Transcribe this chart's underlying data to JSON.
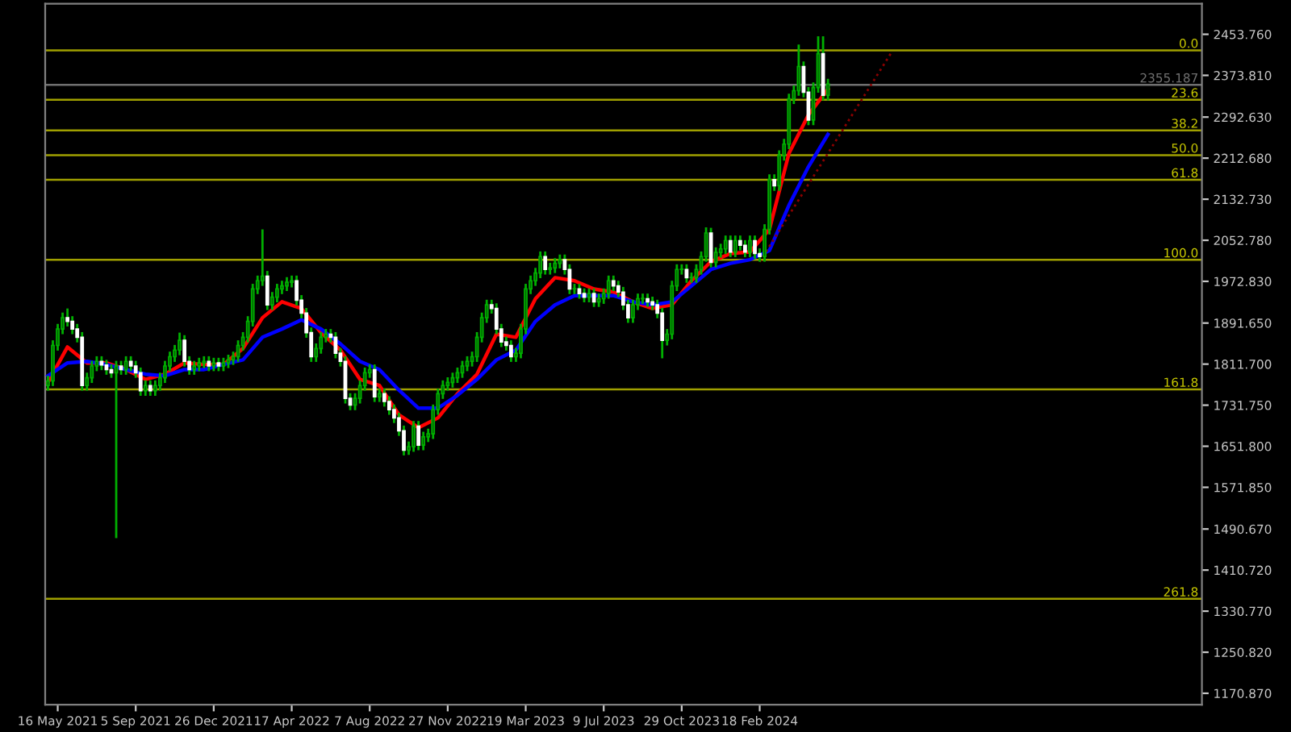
{
  "chart_data": {
    "type": "candlestick",
    "x": [
      "2021-05-02",
      "2021-05-09",
      "2021-05-16",
      "2021-05-23",
      "2021-05-30",
      "2021-06-06",
      "2021-06-13",
      "2021-06-20",
      "2021-06-27",
      "2021-07-04",
      "2021-07-11",
      "2021-07-18",
      "2021-07-25",
      "2021-08-01",
      "2021-08-08",
      "2021-08-15",
      "2021-08-22",
      "2021-08-29",
      "2021-09-05",
      "2021-09-12",
      "2021-09-19",
      "2021-09-26",
      "2021-10-03",
      "2021-10-10",
      "2021-10-17",
      "2021-10-24",
      "2021-10-31",
      "2021-11-07",
      "2021-11-14",
      "2021-11-21",
      "2021-11-28",
      "2021-12-05",
      "2021-12-12",
      "2021-12-19",
      "2021-12-26",
      "2022-01-02",
      "2022-01-09",
      "2022-01-16",
      "2022-01-23",
      "2022-01-30",
      "2022-02-06",
      "2022-02-13",
      "2022-02-20",
      "2022-02-27",
      "2022-03-06",
      "2022-03-13",
      "2022-03-20",
      "2022-03-27",
      "2022-04-03",
      "2022-04-10",
      "2022-04-17",
      "2022-04-24",
      "2022-05-01",
      "2022-05-08",
      "2022-05-15",
      "2022-05-22",
      "2022-05-29",
      "2022-06-05",
      "2022-06-12",
      "2022-06-19",
      "2022-06-26",
      "2022-07-03",
      "2022-07-10",
      "2022-07-17",
      "2022-07-24",
      "2022-07-31",
      "2022-08-07",
      "2022-08-14",
      "2022-08-21",
      "2022-08-28",
      "2022-09-04",
      "2022-09-11",
      "2022-09-18",
      "2022-09-25",
      "2022-10-02",
      "2022-10-09",
      "2022-10-16",
      "2022-10-23",
      "2022-10-30",
      "2022-11-06",
      "2022-11-13",
      "2022-11-20",
      "2022-11-27",
      "2022-12-04",
      "2022-12-11",
      "2022-12-18",
      "2022-12-25",
      "2023-01-01",
      "2023-01-08",
      "2023-01-15",
      "2023-01-22",
      "2023-01-29",
      "2023-02-05",
      "2023-02-12",
      "2023-02-19",
      "2023-02-26",
      "2023-03-05",
      "2023-03-12",
      "2023-03-19",
      "2023-03-26",
      "2023-04-02",
      "2023-04-09",
      "2023-04-16",
      "2023-04-23",
      "2023-04-30",
      "2023-05-07",
      "2023-05-14",
      "2023-05-21",
      "2023-05-28",
      "2023-06-04",
      "2023-06-11",
      "2023-06-18",
      "2023-06-25",
      "2023-07-02",
      "2023-07-09",
      "2023-07-16",
      "2023-07-23",
      "2023-07-30",
      "2023-08-06",
      "2023-08-13",
      "2023-08-20",
      "2023-08-27",
      "2023-09-03",
      "2023-09-10",
      "2023-09-17",
      "2023-09-24",
      "2023-10-01",
      "2023-10-08",
      "2023-10-15",
      "2023-10-22",
      "2023-10-29",
      "2023-11-05",
      "2023-11-12",
      "2023-11-19",
      "2023-11-26",
      "2023-12-03",
      "2023-12-10",
      "2023-12-17",
      "2023-12-24",
      "2023-12-31",
      "2024-01-07",
      "2024-01-14",
      "2024-01-21",
      "2024-01-28",
      "2024-02-04",
      "2024-02-11",
      "2024-02-18",
      "2024-02-25",
      "2024-03-03",
      "2024-03-10",
      "2024-03-17",
      "2024-03-24",
      "2024-03-31",
      "2024-04-07",
      "2024-04-14",
      "2024-04-21",
      "2024-04-28",
      "2024-05-05",
      "2024-05-12",
      "2024-05-19",
      "2024-05-26"
    ],
    "ohlc": [
      [
        1770,
        1789,
        1760,
        1779
      ],
      [
        1779,
        1858,
        1769,
        1848
      ],
      [
        1848,
        1890,
        1838,
        1880
      ],
      [
        1880,
        1912,
        1870,
        1902
      ],
      [
        1902,
        1920,
        1885,
        1895
      ],
      [
        1895,
        1905,
        1870,
        1880
      ],
      [
        1880,
        1890,
        1854,
        1864
      ],
      [
        1864,
        1874,
        1760,
        1770
      ],
      [
        1770,
        1795,
        1760,
        1785
      ],
      [
        1785,
        1818,
        1775,
        1808
      ],
      [
        1808,
        1827,
        1798,
        1817
      ],
      [
        1817,
        1827,
        1800,
        1810
      ],
      [
        1810,
        1820,
        1791,
        1801
      ],
      [
        1801,
        1811,
        1785,
        1795
      ],
      [
        1795,
        1818,
        1473,
        1808
      ],
      [
        1808,
        1818,
        1791,
        1801
      ],
      [
        1801,
        1827,
        1791,
        1817
      ],
      [
        1817,
        1827,
        1798,
        1808
      ],
      [
        1808,
        1818,
        1785,
        1795
      ],
      [
        1795,
        1805,
        1750,
        1760
      ],
      [
        1760,
        1780,
        1750,
        1770
      ],
      [
        1770,
        1780,
        1750,
        1760
      ],
      [
        1760,
        1780,
        1750,
        1770
      ],
      [
        1770,
        1795,
        1760,
        1785
      ],
      [
        1785,
        1818,
        1775,
        1808
      ],
      [
        1808,
        1836,
        1798,
        1826
      ],
      [
        1826,
        1849,
        1816,
        1839
      ],
      [
        1839,
        1873,
        1829,
        1858
      ],
      [
        1858,
        1868,
        1807,
        1817
      ],
      [
        1817,
        1827,
        1791,
        1801
      ],
      [
        1801,
        1818,
        1791,
        1808
      ],
      [
        1808,
        1824,
        1798,
        1814
      ],
      [
        1814,
        1827,
        1804,
        1817
      ],
      [
        1817,
        1827,
        1798,
        1808
      ],
      [
        1808,
        1824,
        1798,
        1814
      ],
      [
        1814,
        1824,
        1798,
        1808
      ],
      [
        1808,
        1824,
        1798,
        1814
      ],
      [
        1814,
        1830,
        1804,
        1820
      ],
      [
        1820,
        1836,
        1810,
        1826
      ],
      [
        1826,
        1858,
        1816,
        1848
      ],
      [
        1848,
        1874,
        1838,
        1864
      ],
      [
        1864,
        1905,
        1854,
        1895
      ],
      [
        1895,
        1968,
        1885,
        1958
      ],
      [
        1958,
        1984,
        1948,
        1974
      ],
      [
        1974,
        2074,
        1964,
        1983
      ],
      [
        1983,
        1993,
        1917,
        1927
      ],
      [
        1927,
        1952,
        1917,
        1942
      ],
      [
        1942,
        1968,
        1932,
        1958
      ],
      [
        1958,
        1974,
        1948,
        1964
      ],
      [
        1964,
        1981,
        1954,
        1971
      ],
      [
        1971,
        1984,
        1961,
        1974
      ],
      [
        1974,
        1984,
        1926,
        1936
      ],
      [
        1936,
        1946,
        1901,
        1911
      ],
      [
        1911,
        1921,
        1863,
        1873
      ],
      [
        1873,
        1883,
        1816,
        1826
      ],
      [
        1826,
        1852,
        1816,
        1842
      ],
      [
        1842,
        1874,
        1832,
        1864
      ],
      [
        1864,
        1880,
        1854,
        1870
      ],
      [
        1870,
        1880,
        1854,
        1864
      ],
      [
        1864,
        1874,
        1823,
        1833
      ],
      [
        1833,
        1843,
        1807,
        1817
      ],
      [
        1817,
        1827,
        1735,
        1745
      ],
      [
        1745,
        1755,
        1722,
        1732
      ],
      [
        1732,
        1755,
        1722,
        1745
      ],
      [
        1745,
        1780,
        1735,
        1770
      ],
      [
        1770,
        1805,
        1760,
        1795
      ],
      [
        1795,
        1811,
        1785,
        1801
      ],
      [
        1801,
        1811,
        1738,
        1748
      ],
      [
        1748,
        1764,
        1738,
        1754
      ],
      [
        1754,
        1764,
        1729,
        1739
      ],
      [
        1739,
        1749,
        1713,
        1723
      ],
      [
        1723,
        1733,
        1697,
        1707
      ],
      [
        1707,
        1717,
        1672,
        1682
      ],
      [
        1682,
        1692,
        1634,
        1644
      ],
      [
        1644,
        1661,
        1635,
        1651
      ],
      [
        1651,
        1701,
        1641,
        1691
      ],
      [
        1691,
        1701,
        1644,
        1654
      ],
      [
        1654,
        1680,
        1644,
        1670
      ],
      [
        1670,
        1686,
        1660,
        1676
      ],
      [
        1676,
        1733,
        1666,
        1723
      ],
      [
        1723,
        1764,
        1713,
        1754
      ],
      [
        1754,
        1780,
        1744,
        1770
      ],
      [
        1770,
        1786,
        1760,
        1776
      ],
      [
        1776,
        1795,
        1766,
        1785
      ],
      [
        1785,
        1805,
        1775,
        1795
      ],
      [
        1795,
        1818,
        1785,
        1808
      ],
      [
        1808,
        1827,
        1798,
        1817
      ],
      [
        1817,
        1836,
        1807,
        1826
      ],
      [
        1826,
        1874,
        1816,
        1864
      ],
      [
        1864,
        1912,
        1854,
        1902
      ],
      [
        1902,
        1937,
        1892,
        1927
      ],
      [
        1927,
        1937,
        1910,
        1920
      ],
      [
        1920,
        1930,
        1870,
        1880
      ],
      [
        1880,
        1890,
        1845,
        1855
      ],
      [
        1855,
        1865,
        1838,
        1848
      ],
      [
        1848,
        1858,
        1816,
        1826
      ],
      [
        1826,
        1843,
        1816,
        1833
      ],
      [
        1833,
        1890,
        1823,
        1880
      ],
      [
        1880,
        1968,
        1870,
        1958
      ],
      [
        1958,
        1984,
        1948,
        1974
      ],
      [
        1974,
        1999,
        1964,
        1989
      ],
      [
        1989,
        2031,
        1979,
        2021
      ],
      [
        2021,
        2031,
        1986,
        1996
      ],
      [
        1996,
        2009,
        1986,
        1999
      ],
      [
        1999,
        2018,
        1989,
        2008
      ],
      [
        2008,
        2025,
        1998,
        2015
      ],
      [
        2015,
        2025,
        1986,
        1996
      ],
      [
        1996,
        2006,
        1948,
        1958
      ],
      [
        1958,
        1968,
        1948,
        1958
      ],
      [
        1958,
        1968,
        1939,
        1949
      ],
      [
        1949,
        1959,
        1932,
        1942
      ],
      [
        1942,
        1959,
        1932,
        1949
      ],
      [
        1949,
        1959,
        1923,
        1933
      ],
      [
        1933,
        1949,
        1923,
        1939
      ],
      [
        1939,
        1959,
        1929,
        1949
      ],
      [
        1949,
        1984,
        1939,
        1974
      ],
      [
        1974,
        1984,
        1954,
        1964
      ],
      [
        1964,
        1974,
        1942,
        1952
      ],
      [
        1952,
        1962,
        1917,
        1927
      ],
      [
        1927,
        1937,
        1892,
        1902
      ],
      [
        1902,
        1937,
        1892,
        1927
      ],
      [
        1927,
        1949,
        1917,
        1939
      ],
      [
        1939,
        1949,
        1929,
        1939
      ],
      [
        1939,
        1949,
        1923,
        1933
      ],
      [
        1933,
        1943,
        1917,
        1927
      ],
      [
        1927,
        1937,
        1901,
        1911
      ],
      [
        1911,
        1921,
        1823,
        1858
      ],
      [
        1858,
        1880,
        1848,
        1870
      ],
      [
        1870,
        1974,
        1860,
        1964
      ],
      [
        1964,
        2006,
        1954,
        1996
      ],
      [
        1996,
        2006,
        1986,
        1996
      ],
      [
        1996,
        2006,
        1970,
        1980
      ],
      [
        1980,
        1990,
        1970,
        1980
      ],
      [
        1980,
        2006,
        1970,
        1996
      ],
      [
        1996,
        2031,
        1986,
        2021
      ],
      [
        2021,
        2078,
        2011,
        2067
      ],
      [
        2067,
        2077,
        2000,
        2010
      ],
      [
        2010,
        2039,
        2000,
        2029
      ],
      [
        2029,
        2046,
        2019,
        2036
      ],
      [
        2036,
        2062,
        2026,
        2052
      ],
      [
        2052,
        2062,
        2020,
        2030
      ],
      [
        2030,
        2062,
        2020,
        2052
      ],
      [
        2052,
        2062,
        2033,
        2043
      ],
      [
        2043,
        2053,
        2020,
        2030
      ],
      [
        2030,
        2062,
        2020,
        2052
      ],
      [
        2052,
        2062,
        2017,
        2027
      ],
      [
        2027,
        2037,
        2011,
        2021
      ],
      [
        2021,
        2084,
        2011,
        2074
      ],
      [
        2074,
        2181,
        2064,
        2171
      ],
      [
        2171,
        2181,
        2149,
        2159
      ],
      [
        2159,
        2228,
        2149,
        2218
      ],
      [
        2218,
        2250,
        2208,
        2240
      ],
      [
        2240,
        2338,
        2230,
        2328
      ],
      [
        2328,
        2354,
        2318,
        2344
      ],
      [
        2344,
        2434,
        2334,
        2391
      ],
      [
        2391,
        2401,
        2331,
        2341
      ],
      [
        2341,
        2351,
        2277,
        2287
      ],
      [
        2287,
        2360,
        2277,
        2350
      ],
      [
        2350,
        2450,
        2340,
        2416
      ],
      [
        2416,
        2450,
        2325,
        2335
      ],
      [
        2335,
        2367,
        2325,
        2357
      ]
    ],
    "series": [
      {
        "type": "line",
        "color": "#ff0000",
        "x": [
          "2021-05-02",
          "2021-05-30",
          "2021-06-27",
          "2021-07-25",
          "2021-08-22",
          "2021-09-19",
          "2021-10-17",
          "2021-11-14",
          "2021-12-12",
          "2022-01-09",
          "2022-02-06",
          "2022-03-06",
          "2022-04-03",
          "2022-05-01",
          "2022-05-29",
          "2022-06-26",
          "2022-07-24",
          "2022-08-21",
          "2022-09-18",
          "2022-10-16",
          "2022-11-13",
          "2022-12-11",
          "2023-01-08",
          "2023-02-05",
          "2023-03-05",
          "2023-04-02",
          "2023-04-30",
          "2023-05-28",
          "2023-06-25",
          "2023-07-23",
          "2023-08-20",
          "2023-09-17",
          "2023-10-15",
          "2023-11-12",
          "2023-12-10",
          "2024-01-07",
          "2024-02-04",
          "2024-03-03",
          "2024-03-31",
          "2024-04-28",
          "2024-05-26"
        ],
        "values": [
          1776,
          1845,
          1814,
          1814,
          1801,
          1782,
          1792,
          1814,
          1811,
          1811,
          1842,
          1902,
          1933,
          1920,
          1873,
          1839,
          1782,
          1770,
          1713,
          1688,
          1707,
          1754,
          1792,
          1870,
          1864,
          1939,
          1980,
          1974,
          1958,
          1952,
          1933,
          1920,
          1927,
          1974,
          2011,
          2027,
          2030,
          2074,
          2222,
          2297,
          2347
        ]
      },
      {
        "type": "line",
        "color": "#0000ff",
        "x": [
          "2021-05-02",
          "2021-05-30",
          "2021-06-27",
          "2021-07-25",
          "2021-08-22",
          "2021-09-19",
          "2021-10-17",
          "2021-11-14",
          "2021-12-12",
          "2022-01-09",
          "2022-02-06",
          "2022-03-06",
          "2022-04-03",
          "2022-05-01",
          "2022-05-29",
          "2022-06-26",
          "2022-07-24",
          "2022-08-21",
          "2022-09-18",
          "2022-10-16",
          "2022-11-13",
          "2022-12-11",
          "2023-01-08",
          "2023-02-05",
          "2023-03-05",
          "2023-04-02",
          "2023-04-30",
          "2023-05-28",
          "2023-06-25",
          "2023-07-23",
          "2023-08-20",
          "2023-09-17",
          "2023-10-15",
          "2023-11-12",
          "2023-12-10",
          "2024-01-07",
          "2024-02-04",
          "2024-03-03",
          "2024-03-31",
          "2024-04-28",
          "2024-05-26"
        ],
        "values": [
          1789,
          1814,
          1817,
          1811,
          1801,
          1792,
          1789,
          1801,
          1801,
          1811,
          1820,
          1864,
          1880,
          1898,
          1880,
          1851,
          1817,
          1801,
          1761,
          1726,
          1726,
          1751,
          1782,
          1820,
          1839,
          1895,
          1927,
          1945,
          1945,
          1945,
          1933,
          1927,
          1933,
          1964,
          1996,
          2008,
          2015,
          2033,
          2121,
          2196,
          2259
        ]
      },
      {
        "type": "line",
        "color": "#8b0000",
        "line_style": "dotted",
        "x": [
          "2024-02-18",
          "2024-08-25"
        ],
        "values": [
          2011,
          2418
        ]
      }
    ],
    "ref_lines": [
      {
        "axis": "y",
        "value": 2422.4,
        "color": "#a0a000"
      },
      {
        "axis": "y",
        "value": 2326.2,
        "color": "#a0a000"
      },
      {
        "axis": "y",
        "value": 2266.6,
        "color": "#a0a000"
      },
      {
        "axis": "y",
        "value": 2218.5,
        "color": "#a0a000"
      },
      {
        "axis": "y",
        "value": 2170.4,
        "color": "#a0a000"
      },
      {
        "axis": "y",
        "value": 2014.6,
        "color": "#a0a000"
      },
      {
        "axis": "y",
        "value": 1762.5,
        "color": "#a0a000"
      },
      {
        "axis": "y",
        "value": 1354.7,
        "color": "#a0a000"
      },
      {
        "axis": "y",
        "value": 2355.187,
        "label": "2355.187",
        "color": "#707070"
      }
    ],
    "xlim": [
      "2021-04-28",
      "2025-11-14"
    ],
    "xticks": [
      {
        "value": "2021-05-16",
        "label": "16 May 2021"
      },
      {
        "value": "2021-09-05",
        "label": "5 Sep 2021"
      },
      {
        "value": "2021-12-26",
        "label": "26 Dec 2021"
      },
      {
        "value": "2022-04-17",
        "label": "17 Apr 2022"
      },
      {
        "value": "2022-08-07",
        "label": "7 Aug 2022"
      },
      {
        "value": "2022-11-27",
        "label": "27 Nov 2022"
      },
      {
        "value": "2023-03-19",
        "label": "19 Mar 2023"
      },
      {
        "value": "2023-07-09",
        "label": "9 Jul 2023"
      },
      {
        "value": "2023-10-29",
        "label": "29 Oct 2023"
      },
      {
        "value": "2024-02-18",
        "label": "18 Feb 2024"
      }
    ],
    "ylim": [
      1148.8,
      2513.4
    ],
    "yticks": [
      {
        "value": 2453.76,
        "label": "2453.760"
      },
      {
        "value": 2373.81,
        "label": "2373.810"
      },
      {
        "value": 2292.63,
        "label": "2292.630"
      },
      {
        "value": 2212.68,
        "label": "2212.680"
      },
      {
        "value": 2132.73,
        "label": "2132.730"
      },
      {
        "value": 2052.78,
        "label": "2052.780"
      },
      {
        "value": 1972.83,
        "label": "1972.830"
      },
      {
        "value": 1891.65,
        "label": "1891.650"
      },
      {
        "value": 1811.7,
        "label": "1811.700"
      },
      {
        "value": 1731.75,
        "label": "1731.750"
      },
      {
        "value": 1651.8,
        "label": "1651.800"
      },
      {
        "value": 1571.85,
        "label": "1571.850"
      },
      {
        "value": 1490.67,
        "label": "1490.670"
      },
      {
        "value": 1410.72,
        "label": "1410.720"
      },
      {
        "value": 1330.77,
        "label": "1330.770"
      },
      {
        "value": 1250.82,
        "label": "1250.820"
      },
      {
        "value": 1170.87,
        "label": "1170.870"
      }
    ],
    "annotations": [
      "0.0",
      "23.6",
      "38.2",
      "50.0",
      "61.8",
      "100.0",
      "161.8",
      "261.8"
    ],
    "grid": false,
    "legend": false
  }
}
